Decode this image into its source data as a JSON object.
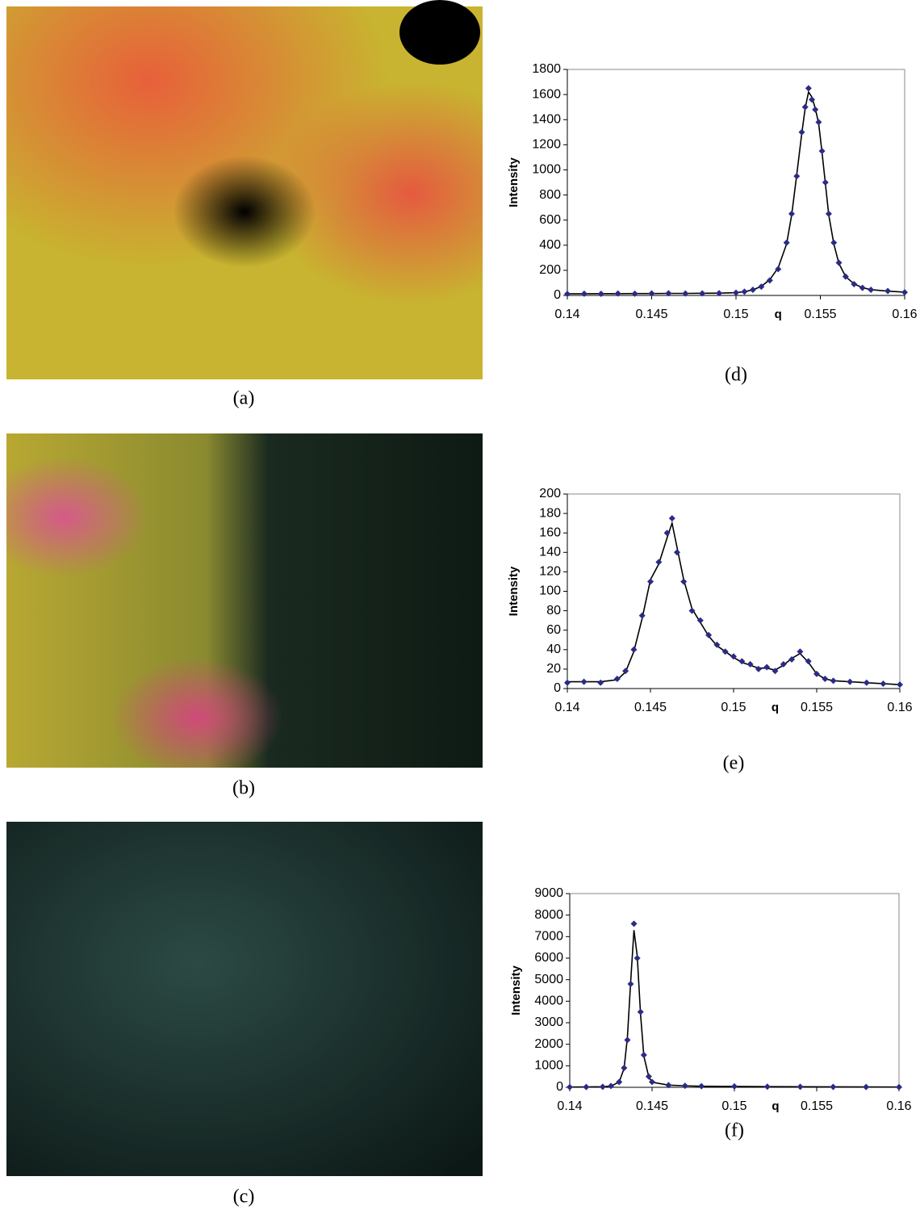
{
  "figures": [
    {
      "caption": "(a)"
    },
    {
      "caption": "(b)"
    },
    {
      "caption": "(c)"
    }
  ],
  "chart_data": [
    {
      "type": "scatter",
      "caption": "(d)",
      "ylabel": "Intensity",
      "xlabel": "q",
      "x": [
        0.14,
        0.141,
        0.142,
        0.143,
        0.144,
        0.145,
        0.146,
        0.147,
        0.148,
        0.149,
        0.15,
        0.1505,
        0.151,
        0.1515,
        0.152,
        0.1525,
        0.153,
        0.1533,
        0.1536,
        0.1539,
        0.1541,
        0.1543,
        0.1545,
        0.1547,
        0.1549,
        0.1551,
        0.1553,
        0.1555,
        0.1558,
        0.1561,
        0.1565,
        0.157,
        0.1575,
        0.158,
        0.159,
        0.16
      ],
      "xlim": [
        0.14,
        0.16
      ],
      "xticks": [
        0.14,
        0.145,
        0.15,
        0.155,
        0.16
      ],
      "ylim": [
        0,
        1800
      ],
      "yticks": [
        0,
        200,
        400,
        600,
        800,
        1000,
        1200,
        1400,
        1600,
        1800
      ],
      "series": [
        {
          "marker": "diamond",
          "color": "#2b2b86",
          "values": [
            12,
            14,
            13,
            15,
            14,
            16,
            17,
            15,
            16,
            18,
            22,
            30,
            45,
            70,
            120,
            210,
            420,
            650,
            950,
            1300,
            1500,
            1650,
            1560,
            1480,
            1380,
            1150,
            900,
            650,
            420,
            260,
            150,
            90,
            60,
            45,
            35,
            25
          ]
        },
        {
          "marker": "line",
          "color": "#000000",
          "values": [
            13,
            13,
            14,
            14,
            15,
            15,
            16,
            16,
            17,
            18,
            22,
            30,
            44,
            72,
            125,
            220,
            410,
            640,
            960,
            1290,
            1490,
            1620,
            1580,
            1490,
            1370,
            1140,
            890,
            640,
            410,
            255,
            150,
            92,
            62,
            46,
            34,
            26
          ]
        }
      ]
    },
    {
      "type": "scatter",
      "caption": "(e)",
      "ylabel": "Intensity",
      "xlabel": "q",
      "x": [
        0.14,
        0.141,
        0.142,
        0.143,
        0.1435,
        0.144,
        0.1445,
        0.145,
        0.1455,
        0.146,
        0.1463,
        0.1466,
        0.147,
        0.1475,
        0.148,
        0.1485,
        0.149,
        0.1495,
        0.15,
        0.1505,
        0.151,
        0.1515,
        0.152,
        0.1525,
        0.153,
        0.1535,
        0.154,
        0.1545,
        0.155,
        0.1555,
        0.156,
        0.157,
        0.158,
        0.159,
        0.16
      ],
      "xlim": [
        0.14,
        0.16
      ],
      "xticks": [
        0.14,
        0.145,
        0.15,
        0.155,
        0.16
      ],
      "ylim": [
        0,
        200
      ],
      "yticks": [
        0,
        20,
        40,
        60,
        80,
        100,
        120,
        140,
        160,
        180,
        200
      ],
      "series": [
        {
          "marker": "diamond",
          "color": "#2b2b86",
          "values": [
            6,
            7,
            6,
            10,
            18,
            40,
            75,
            110,
            130,
            160,
            175,
            140,
            110,
            80,
            70,
            55,
            45,
            38,
            33,
            28,
            25,
            20,
            22,
            18,
            25,
            30,
            38,
            28,
            15,
            10,
            8,
            7,
            6,
            5,
            4
          ]
        },
        {
          "marker": "line",
          "color": "#000000",
          "values": [
            7,
            7,
            7,
            9,
            17,
            38,
            72,
            112,
            128,
            155,
            170,
            145,
            112,
            82,
            68,
            54,
            44,
            38,
            32,
            27,
            24,
            21,
            21,
            19,
            24,
            31,
            36,
            27,
            15,
            10,
            8,
            7,
            6,
            5,
            4
          ]
        }
      ]
    },
    {
      "type": "scatter",
      "caption": "(f)",
      "ylabel": "Intensity",
      "xlabel": "q",
      "x": [
        0.14,
        0.141,
        0.142,
        0.1425,
        0.143,
        0.1433,
        0.1435,
        0.1437,
        0.1439,
        0.1441,
        0.1443,
        0.1445,
        0.1448,
        0.145,
        0.146,
        0.147,
        0.148,
        0.15,
        0.152,
        0.154,
        0.156,
        0.158,
        0.16
      ],
      "xlim": [
        0.14,
        0.16
      ],
      "xticks": [
        0.14,
        0.145,
        0.15,
        0.155,
        0.16
      ],
      "ylim": [
        0,
        9000
      ],
      "yticks": [
        0,
        1000,
        2000,
        3000,
        4000,
        5000,
        6000,
        7000,
        8000,
        9000
      ],
      "series": [
        {
          "marker": "diamond",
          "color": "#2b2b86",
          "values": [
            10,
            15,
            25,
            60,
            250,
            900,
            2200,
            4800,
            7600,
            6000,
            3500,
            1500,
            500,
            250,
            100,
            70,
            50,
            40,
            30,
            25,
            20,
            15,
            10
          ]
        },
        {
          "marker": "line",
          "color": "#000000",
          "values": [
            10,
            15,
            25,
            60,
            240,
            880,
            2300,
            4900,
            7300,
            6100,
            3400,
            1450,
            480,
            240,
            100,
            70,
            50,
            40,
            30,
            25,
            20,
            15,
            10
          ]
        }
      ]
    }
  ]
}
